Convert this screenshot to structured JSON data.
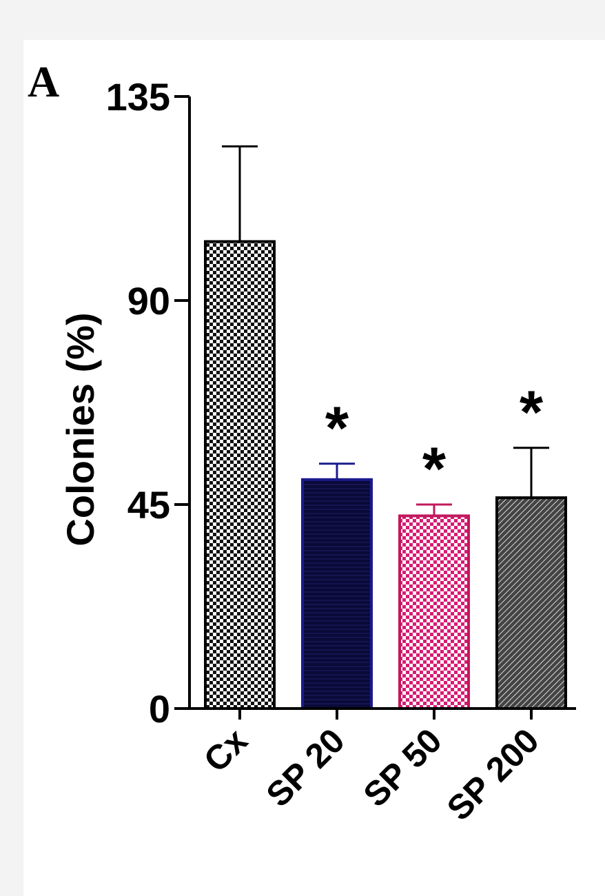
{
  "panel_label": "A",
  "colors": {
    "axis": "#000000",
    "sp20_fill": "#0a0a3a",
    "sp20_stroke": "#1b1b8c",
    "sp50_fill": "#d81b72",
    "sp50_stroke": "#c2185b",
    "checker_dark": "#111111"
  },
  "chart_data": {
    "type": "bar",
    "title": "",
    "xlabel": "",
    "ylabel": "Colonies (%)",
    "ylim": [
      0,
      135
    ],
    "yticks": [
      0,
      45,
      90,
      135
    ],
    "categories": [
      "Cx",
      "SP 20",
      "SP 50",
      "SP 200"
    ],
    "values": [
      103,
      50.5,
      42.5,
      46.5
    ],
    "errors": [
      21,
      3.5,
      2.5,
      11
    ],
    "significance": [
      "",
      "*",
      "*",
      "*"
    ],
    "patterns": [
      "checker-black",
      "navy-lines",
      "checker-pink",
      "diagonal-hatch"
    ],
    "grid": false,
    "legend": "none"
  }
}
